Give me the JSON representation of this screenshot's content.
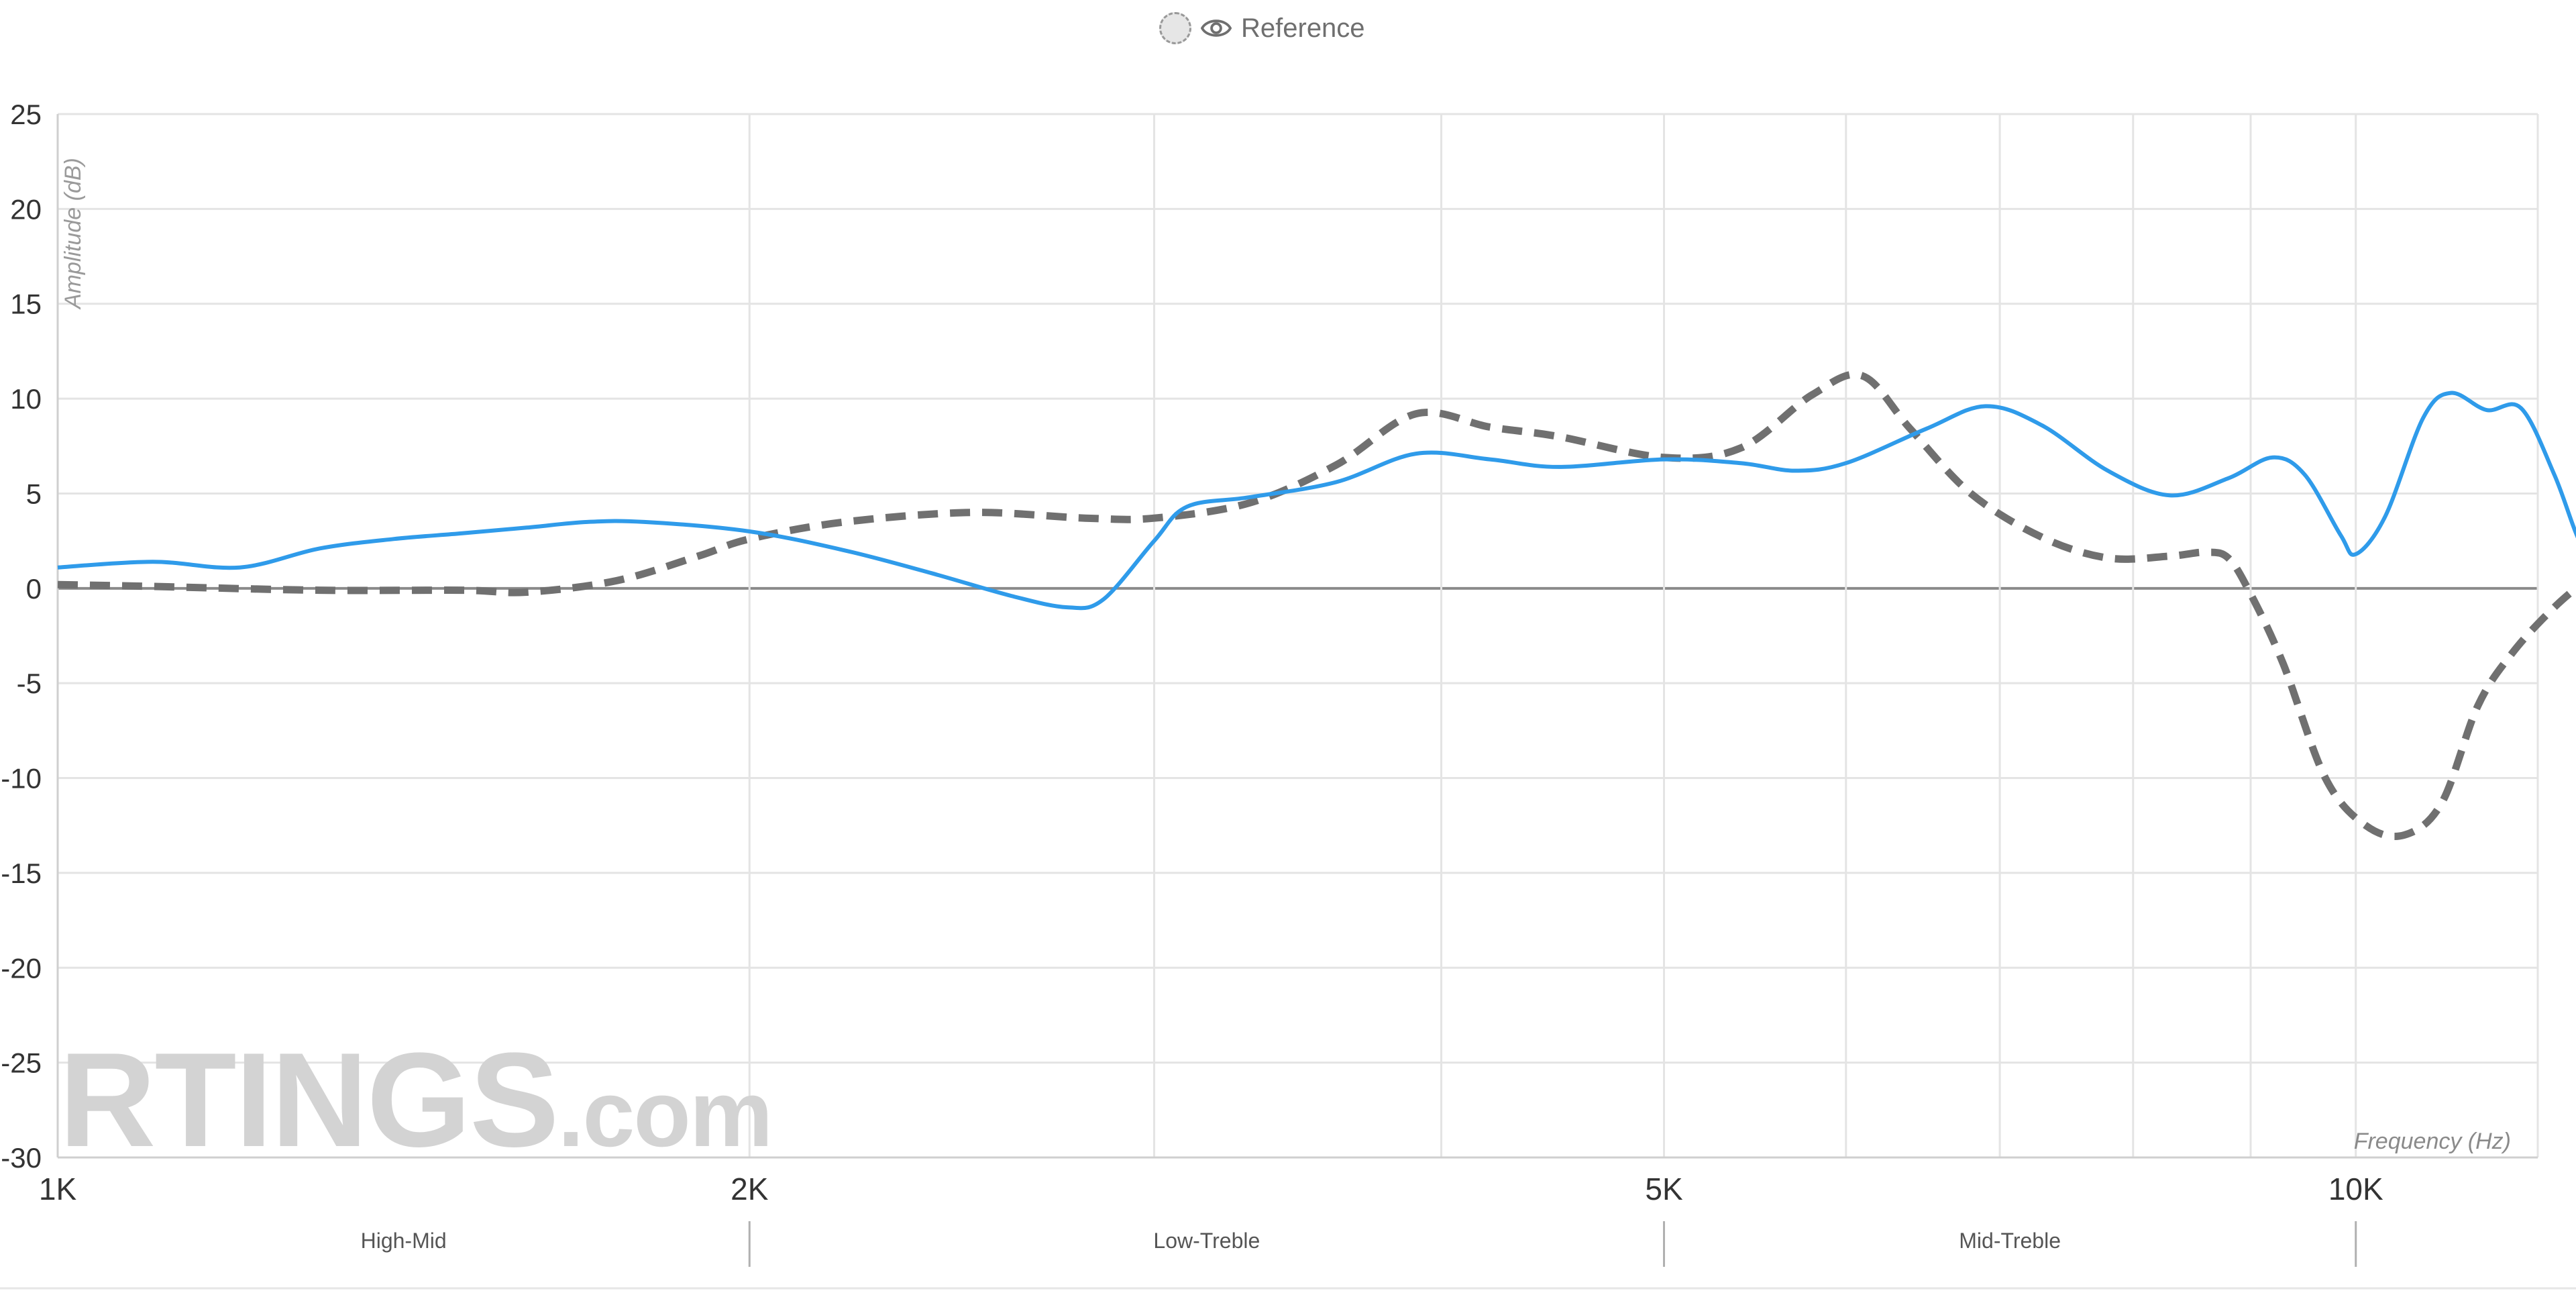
{
  "legend": {
    "label": "Reference",
    "icon": "eye-icon",
    "swatch_color": "#e6e6e6"
  },
  "watermark": {
    "brand": "RTINGS",
    "suffix": ".com"
  },
  "chart_data": {
    "type": "line",
    "xlabel": "Frequency (Hz)",
    "ylabel": "Amplitude (dB)",
    "x_scale": "log",
    "xlim": [
      1000,
      12000
    ],
    "ylim": [
      -30,
      25
    ],
    "grid": true,
    "x_ticks": [
      {
        "value": 1000,
        "label": "1K"
      },
      {
        "value": 2000,
        "label": "2K"
      },
      {
        "value": 5000,
        "label": "5K"
      },
      {
        "value": 10000,
        "label": "10K"
      }
    ],
    "x_gridlines": [
      2000,
      3000,
      4000,
      5000,
      6000,
      7000,
      8000,
      9000,
      10000
    ],
    "y_ticks": [
      25,
      20,
      15,
      10,
      5,
      0,
      -5,
      -10,
      -15,
      -20,
      -25,
      -30
    ],
    "bands": [
      {
        "label": "High-Mid",
        "from": 1000,
        "to": 2000
      },
      {
        "label": "Low-Treble",
        "from": 2000,
        "to": 5000
      },
      {
        "label": "Mid-Treble",
        "from": 5000,
        "to": 10000
      }
    ],
    "series": [
      {
        "style": "solid",
        "color": "#2f9bea",
        "points": [
          [
            1000,
            1.1
          ],
          [
            1100,
            1.4
          ],
          [
            1200,
            1.1
          ],
          [
            1300,
            2.1
          ],
          [
            1400,
            2.6
          ],
          [
            1500,
            2.9
          ],
          [
            1600,
            3.2
          ],
          [
            1700,
            3.5
          ],
          [
            1800,
            3.5
          ],
          [
            2000,
            3.0
          ],
          [
            2200,
            2.0
          ],
          [
            2400,
            0.8
          ],
          [
            2600,
            -0.4
          ],
          [
            2750,
            -1.0
          ],
          [
            2850,
            -0.6
          ],
          [
            3000,
            2.5
          ],
          [
            3100,
            4.3
          ],
          [
            3300,
            4.8
          ],
          [
            3600,
            5.6
          ],
          [
            3900,
            7.1
          ],
          [
            4200,
            6.8
          ],
          [
            4500,
            6.4
          ],
          [
            5000,
            6.8
          ],
          [
            5400,
            6.6
          ],
          [
            5700,
            6.2
          ],
          [
            6000,
            6.6
          ],
          [
            6500,
            8.4
          ],
          [
            6900,
            9.6
          ],
          [
            7300,
            8.6
          ],
          [
            7800,
            6.2
          ],
          [
            8300,
            4.9
          ],
          [
            8800,
            5.8
          ],
          [
            9200,
            6.9
          ],
          [
            9500,
            6.0
          ],
          [
            9850,
            2.8
          ],
          [
            10000,
            1.8
          ],
          [
            10300,
            3.8
          ],
          [
            10700,
            9.0
          ],
          [
            11000,
            10.3
          ],
          [
            11400,
            9.4
          ],
          [
            11800,
            9.5
          ],
          [
            12200,
            6.0
          ],
          [
            12500,
            2.6
          ],
          [
            12700,
            1.6
          ]
        ]
      },
      {
        "style": "dashed",
        "color": "#707070",
        "points": [
          [
            1000,
            0.2
          ],
          [
            1100,
            0.1
          ],
          [
            1300,
            -0.1
          ],
          [
            1500,
            -0.1
          ],
          [
            1600,
            -0.2
          ],
          [
            1750,
            0.4
          ],
          [
            1900,
            1.7
          ],
          [
            2000,
            2.6
          ],
          [
            2200,
            3.5
          ],
          [
            2500,
            4.0
          ],
          [
            2800,
            3.7
          ],
          [
            3000,
            3.7
          ],
          [
            3300,
            4.5
          ],
          [
            3600,
            6.5
          ],
          [
            3900,
            9.2
          ],
          [
            4200,
            8.5
          ],
          [
            4500,
            8.0
          ],
          [
            5000,
            6.9
          ],
          [
            5400,
            7.4
          ],
          [
            5800,
            10.2
          ],
          [
            6100,
            11.2
          ],
          [
            6400,
            8.4
          ],
          [
            6800,
            5.0
          ],
          [
            7300,
            2.7
          ],
          [
            7800,
            1.6
          ],
          [
            8300,
            1.7
          ],
          [
            8600,
            1.9
          ],
          [
            8800,
            1.6
          ],
          [
            9000,
            -0.3
          ],
          [
            9300,
            -4.0
          ],
          [
            9700,
            -10.0
          ],
          [
            10100,
            -12.5
          ],
          [
            10500,
            -13.0
          ],
          [
            10900,
            -11.3
          ],
          [
            11300,
            -6.2
          ],
          [
            11700,
            -3.4
          ],
          [
            12200,
            -1.0
          ],
          [
            12700,
            0.8
          ]
        ]
      }
    ]
  }
}
